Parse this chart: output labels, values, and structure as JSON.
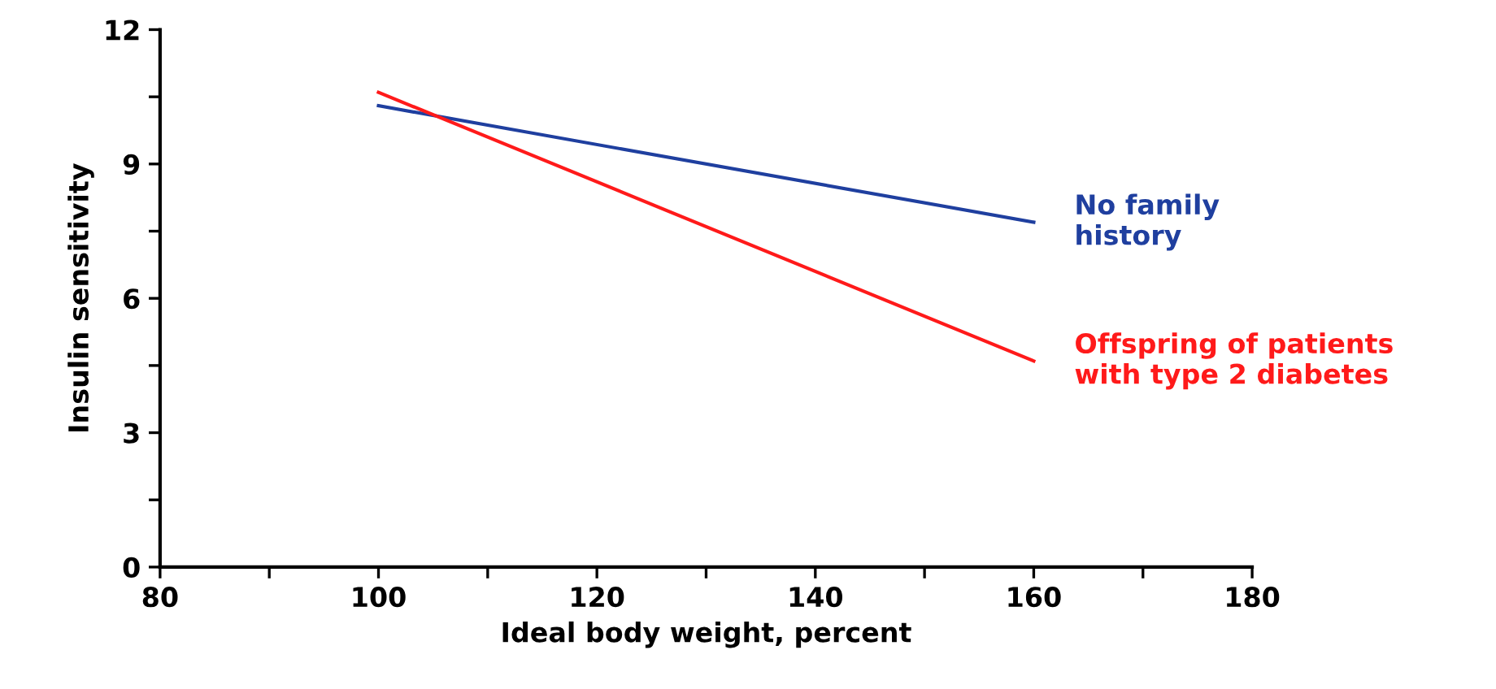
{
  "chart_data": {
    "type": "line",
    "xlabel": "Ideal body weight, percent",
    "ylabel": "Insulin sensitivity",
    "xlim": [
      80,
      180
    ],
    "ylim": [
      0,
      12
    ],
    "xticks": [
      80,
      {
        "value": 90,
        "label": null
      },
      100,
      {
        "value": 110,
        "label": null
      },
      120,
      {
        "value": 130,
        "label": null
      },
      140,
      {
        "value": 150,
        "label": null
      },
      160,
      {
        "value": 170,
        "label": null
      },
      180
    ],
    "yticks": [
      0,
      {
        "value": 1.5,
        "label": null
      },
      3,
      {
        "value": 4.5,
        "label": null
      },
      6,
      {
        "value": 7.5,
        "label": null
      },
      9,
      {
        "value": 10.5,
        "label": null
      },
      12
    ],
    "x": [
      100,
      160
    ],
    "grid": false,
    "legend": false,
    "marker": "none",
    "line_style": "solid",
    "series": [
      {
        "name": "No family\nhistory",
        "color": "#1f3f9f",
        "values": [
          10.3,
          7.7
        ]
      },
      {
        "name": "Offspring of patients\nwith type 2 diabetes",
        "color": "#ff1a1a",
        "values": [
          10.6,
          4.6
        ]
      }
    ]
  }
}
